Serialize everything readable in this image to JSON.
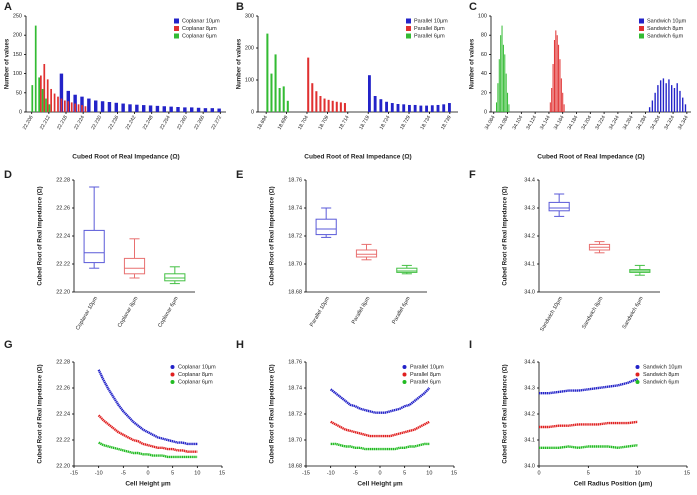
{
  "chart_data": [
    {
      "label": "A",
      "type": "hist",
      "xlabel": "Cubed Root of Real Impedance (Ω)",
      "ylabel": "Number of values",
      "xlim": [
        22.204,
        22.274
      ],
      "xticks": [
        22.206,
        22.212,
        22.218,
        22.224,
        {
          "value": 22.23,
          "label": "22.230"
        },
        22.236,
        22.242,
        22.248,
        22.254,
        {
          "value": 22.26,
          "label": "22.260"
        },
        22.266,
        22.272
      ],
      "ylim": [
        0,
        250
      ],
      "yticks": [
        0,
        50,
        100,
        150,
        200,
        250
      ],
      "legend": "upper right",
      "series": [
        {
          "name": "Coplanar 10µm",
          "color": "#2323c8",
          "x": [
            22.2164,
            22.2188,
            22.2212,
            22.2236,
            22.226,
            22.2284,
            22.2308,
            22.2332,
            22.2356,
            22.238,
            22.2404,
            22.2428,
            22.2452,
            22.2476,
            22.25,
            22.2524,
            22.2548,
            22.2572,
            22.2596,
            22.262,
            22.2644,
            22.2668,
            22.2692,
            22.2716
          ],
          "values": [
            100,
            55,
            45,
            40,
            35,
            30,
            28,
            26,
            24,
            22,
            20,
            19,
            18,
            17,
            16,
            15,
            14,
            13,
            12,
            12,
            11,
            10,
            10,
            9
          ]
        },
        {
          "name": "Coplanar 8µm",
          "color": "#e03030",
          "x": [
            22.2092,
            22.2104,
            22.2116,
            22.2128,
            22.214,
            22.2152,
            22.2164,
            22.2176,
            22.2188,
            22.22,
            22.2212,
            22.2224,
            22.2236,
            22.2248
          ],
          "values": [
            95,
            125,
            85,
            60,
            48,
            40,
            35,
            30,
            28,
            25,
            22,
            20,
            18,
            15
          ]
        },
        {
          "name": "Coplanar 6µm",
          "color": "#33bb33",
          "x": [
            22.2062,
            22.2074,
            22.2086,
            22.2098,
            22.211,
            22.2122
          ],
          "values": [
            70,
            225,
            90,
            60,
            35,
            20
          ]
        }
      ]
    },
    {
      "label": "B",
      "type": "hist",
      "xlabel": "Cubed Root of Real Impedance (Ω)",
      "ylabel": "Number of values",
      "xlim": [
        18.692,
        18.741
      ],
      "xticks": [
        18.694,
        18.699,
        18.704,
        18.709,
        18.714,
        18.719,
        18.724,
        18.729,
        18.734,
        18.739
      ],
      "ylim": [
        0,
        300
      ],
      "yticks": [
        0,
        100,
        200,
        300
      ],
      "legend": "upper right",
      "series": [
        {
          "name": "Parallel 10µm",
          "color": "#2323c8",
          "x": [
            18.7193,
            18.7207,
            18.7221,
            18.7235,
            18.7249,
            18.7263,
            18.7277,
            18.7291,
            18.7305,
            18.7319,
            18.7333,
            18.7347,
            18.7361,
            18.7375,
            18.7389
          ],
          "values": [
            115,
            50,
            40,
            32,
            28,
            25,
            24,
            22,
            22,
            20,
            20,
            21,
            22,
            24,
            28
          ]
        },
        {
          "name": "Parallel 8µm",
          "color": "#e03030",
          "x": [
            18.7043,
            18.7053,
            18.7063,
            18.7073,
            18.7083,
            18.7093,
            18.7103,
            18.7113,
            18.7123,
            18.7133
          ],
          "values": [
            170,
            90,
            65,
            50,
            42,
            38,
            35,
            32,
            30,
            28
          ]
        },
        {
          "name": "Parallel 6µm",
          "color": "#33bb33",
          "x": [
            18.6943,
            18.6953,
            18.6963,
            18.6973,
            18.6983,
            18.6993
          ],
          "values": [
            245,
            120,
            180,
            75,
            80,
            35
          ]
        }
      ]
    },
    {
      "label": "C",
      "type": "hist",
      "xlabel": "Cubed Root of Real Impedance (Ω)",
      "ylabel": "Number of values",
      "xlim": [
        34.06,
        34.35
      ],
      "xticks": [
        34.064,
        34.084,
        34.104,
        34.124,
        34.144,
        34.164,
        34.184,
        34.204,
        34.224,
        34.244,
        34.264,
        34.284,
        34.304,
        34.324,
        34.344
      ],
      "ylim": [
        0,
        100
      ],
      "yticks": [
        0,
        20,
        40,
        60,
        80,
        100
      ],
      "legend": "upper right",
      "series": [
        {
          "name": "Sandwich 10µm",
          "color": "#2323c8",
          "x": [
            34.29,
            34.294,
            34.298,
            34.302,
            34.306,
            34.31,
            34.314,
            34.318,
            34.322,
            34.326,
            34.33,
            34.334,
            34.338,
            34.342
          ],
          "values": [
            5,
            12,
            20,
            28,
            33,
            35,
            30,
            34,
            28,
            25,
            30,
            22,
            15,
            8
          ]
        },
        {
          "name": "Sandwich 8µm",
          "color": "#e03030",
          "x": [
            34.146,
            34.148,
            34.15,
            34.152,
            34.154,
            34.156,
            34.158,
            34.16,
            34.162,
            34.164,
            34.166
          ],
          "values": [
            10,
            25,
            50,
            75,
            85,
            80,
            70,
            55,
            35,
            20,
            8
          ]
        },
        {
          "name": "Sandwich 6µm",
          "color": "#33bb33",
          "x": [
            34.068,
            34.07,
            34.072,
            34.074,
            34.076,
            34.078,
            34.08,
            34.082,
            34.084,
            34.086
          ],
          "values": [
            10,
            30,
            55,
            80,
            90,
            70,
            60,
            40,
            20,
            8
          ]
        }
      ]
    },
    {
      "label": "D",
      "type": "box",
      "ylabel": "Cubed Root of Real Impedance (Ω)",
      "categories": [
        "Coplanar 10µm",
        "Coplanar 8µm",
        "Coplanar 6µm"
      ],
      "colors": [
        "#5a5ad8",
        "#e87070",
        "#44c044"
      ],
      "ylim": [
        22.2,
        22.28
      ],
      "yticks": [
        {
          "value": 22.2,
          "label": "22.20"
        },
        22.22,
        22.24,
        22.26,
        22.28
      ],
      "boxes": [
        {
          "min": 22.217,
          "q1": 22.221,
          "median": 22.228,
          "q3": 22.244,
          "max": 22.275
        },
        {
          "min": 22.21,
          "q1": 22.213,
          "median": 22.217,
          "q3": 22.224,
          "max": 22.238
        },
        {
          "min": 22.206,
          "q1": 22.208,
          "median": 22.21,
          "q3": 22.213,
          "max": 22.218
        }
      ]
    },
    {
      "label": "E",
      "type": "box",
      "ylabel": "Cubed Root of Real Impedance (Ω)",
      "categories": [
        "Parallel 10µm",
        "Parallel 8µm",
        "Parallel 6µm"
      ],
      "colors": [
        "#5a5ad8",
        "#e87070",
        "#44c044"
      ],
      "ylim": [
        18.68,
        18.76
      ],
      "yticks": [
        18.68,
        {
          "value": 18.7,
          "label": "18.70"
        },
        18.72,
        18.74,
        18.76
      ],
      "boxes": [
        {
          "min": 18.719,
          "q1": 18.721,
          "median": 18.725,
          "q3": 18.732,
          "max": 18.74
        },
        {
          "min": 18.703,
          "q1": 18.705,
          "median": 18.707,
          "q3": 18.71,
          "max": 18.714
        },
        {
          "min": 18.693,
          "q1": 18.694,
          "median": 18.695,
          "q3": 18.697,
          "max": 18.699
        }
      ]
    },
    {
      "label": "F",
      "type": "box",
      "ylabel": "Cubed Root of Real Impedance (Ω)",
      "categories": [
        "Sandwich 10µm",
        "Sandwich 8µm",
        "Sandwich 6µm"
      ],
      "colors": [
        "#5a5ad8",
        "#e87070",
        "#44c044"
      ],
      "ylim": [
        34.0,
        34.4
      ],
      "yticks": [
        {
          "value": 34.0,
          "label": "34.0"
        },
        34.1,
        34.2,
        34.3,
        34.4
      ],
      "boxes": [
        {
          "min": 34.27,
          "q1": 34.29,
          "median": 34.3,
          "q3": 34.32,
          "max": 34.35
        },
        {
          "min": 34.14,
          "q1": 34.15,
          "median": 34.16,
          "q3": 34.17,
          "max": 34.18
        },
        {
          "min": 34.06,
          "q1": 34.07,
          "median": 34.075,
          "q3": 34.08,
          "max": 34.095
        }
      ]
    },
    {
      "label": "G",
      "type": "line",
      "xlabel": "Cell Height µm",
      "ylabel": "Cubed Root of Real Impedance (Ω)",
      "xlim": [
        -15,
        15
      ],
      "xticks": [
        -15,
        -10,
        -5,
        0,
        5,
        10,
        15
      ],
      "ylim": [
        22.2,
        22.28
      ],
      "yticks": [
        {
          "value": 22.2,
          "label": "22.20"
        },
        22.22,
        22.24,
        22.26,
        22.28
      ],
      "legend": "upper right",
      "x": [
        -10,
        -9,
        -8,
        -7,
        -6,
        -5,
        -4,
        -3,
        -2,
        -1,
        0,
        1,
        2,
        3,
        4,
        5,
        6,
        7,
        8,
        9,
        10
      ],
      "series": [
        {
          "name": "Coplanar 10µm",
          "color": "#2323c8",
          "values": [
            22.274,
            22.266,
            22.259,
            22.253,
            22.247,
            22.242,
            22.238,
            22.234,
            22.231,
            22.228,
            22.226,
            22.224,
            22.222,
            22.221,
            22.22,
            22.219,
            22.218,
            22.218,
            22.217,
            22.217,
            22.217
          ]
        },
        {
          "name": "Coplanar 8µm",
          "color": "#e02020",
          "values": [
            22.239,
            22.235,
            22.232,
            22.229,
            22.226,
            22.224,
            22.222,
            22.22,
            22.219,
            22.217,
            22.216,
            22.215,
            22.214,
            22.214,
            22.213,
            22.213,
            22.212,
            22.212,
            22.211,
            22.211,
            22.211
          ]
        },
        {
          "name": "Coplanar 6µm",
          "color": "#22bb22",
          "values": [
            22.218,
            22.216,
            22.215,
            22.214,
            22.213,
            22.212,
            22.211,
            22.21,
            22.21,
            22.209,
            22.209,
            22.208,
            22.208,
            22.208,
            22.207,
            22.207,
            22.207,
            22.207,
            22.207,
            22.207,
            22.207
          ]
        }
      ]
    },
    {
      "label": "H",
      "type": "line",
      "xlabel": "Cell Height µm",
      "ylabel": "Cubed Root of Real Impedance (Ω)",
      "xlim": [
        -15,
        15
      ],
      "xticks": [
        -15,
        -10,
        -5,
        0,
        5,
        10,
        15
      ],
      "ylim": [
        18.68,
        18.76
      ],
      "yticks": [
        18.68,
        {
          "value": 18.7,
          "label": "18.70"
        },
        18.72,
        18.74,
        18.76
      ],
      "legend": "upper right",
      "x": [
        -10,
        -9,
        -8,
        -7,
        -6,
        -5,
        -4,
        -3,
        -2,
        -1,
        0,
        1,
        2,
        3,
        4,
        5,
        6,
        7,
        8,
        9,
        10
      ],
      "series": [
        {
          "name": "Parallel 10µm",
          "color": "#2323c8",
          "values": [
            18.739,
            18.736,
            18.733,
            18.73,
            18.727,
            18.726,
            18.724,
            18.723,
            18.722,
            18.721,
            18.721,
            18.721,
            18.722,
            18.723,
            18.724,
            18.726,
            18.727,
            18.73,
            18.733,
            18.736,
            18.74
          ]
        },
        {
          "name": "Parallel 8µm",
          "color": "#e02020",
          "values": [
            18.714,
            18.712,
            18.71,
            18.708,
            18.707,
            18.706,
            18.705,
            18.704,
            18.703,
            18.703,
            18.703,
            18.703,
            18.703,
            18.704,
            18.705,
            18.706,
            18.707,
            18.708,
            18.71,
            18.712,
            18.714
          ]
        },
        {
          "name": "Parallel 6µm",
          "color": "#22bb22",
          "values": [
            18.697,
            18.697,
            18.696,
            18.695,
            18.695,
            18.694,
            18.694,
            18.693,
            18.693,
            18.693,
            18.693,
            18.693,
            18.693,
            18.693,
            18.694,
            18.694,
            18.695,
            18.695,
            18.696,
            18.697,
            18.697
          ]
        }
      ]
    },
    {
      "label": "I",
      "type": "line",
      "xlabel": "Cell Radius Position (µm)",
      "ylabel": "Cubed Root of Real Impedance (Ω)",
      "xlim": [
        0,
        15
      ],
      "xticks": [
        0,
        5,
        10,
        15
      ],
      "ylim": [
        34.0,
        34.4
      ],
      "yticks": [
        {
          "value": 34.0,
          "label": "34.0"
        },
        34.1,
        34.2,
        34.3,
        34.4
      ],
      "legend": "upper right",
      "x": [
        0,
        1,
        2,
        3,
        4,
        5,
        6,
        7,
        8,
        9,
        10
      ],
      "series": [
        {
          "name": "Sandwich 10µm",
          "color": "#2323c8",
          "values": [
            34.28,
            34.28,
            34.285,
            34.29,
            34.29,
            34.295,
            34.3,
            34.305,
            34.31,
            34.32,
            34.335
          ]
        },
        {
          "name": "Sandwich 8µm",
          "color": "#e02020",
          "values": [
            34.15,
            34.15,
            34.155,
            34.155,
            34.16,
            34.16,
            34.16,
            34.165,
            34.165,
            34.165,
            34.17
          ]
        },
        {
          "name": "Sandwich 6µm",
          "color": "#22bb22",
          "values": [
            34.07,
            34.07,
            34.07,
            34.075,
            34.07,
            34.075,
            34.075,
            34.075,
            34.07,
            34.075,
            34.08
          ]
        }
      ]
    }
  ]
}
